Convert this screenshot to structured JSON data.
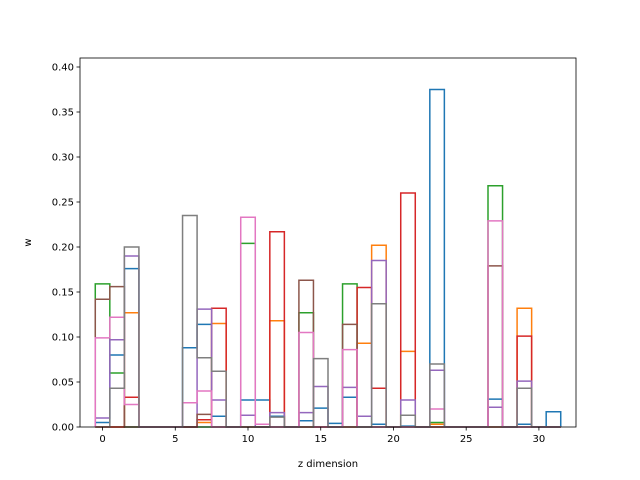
{
  "chart_data": {
    "type": "step-histogram",
    "xlabel": "z dimension",
    "ylabel": "w",
    "xlim": [
      -1.55,
      32.55
    ],
    "ylim": [
      0,
      0.41
    ],
    "x_ticks": [
      0,
      5,
      10,
      15,
      20,
      25,
      30
    ],
    "y_ticks": [
      0.0,
      0.05,
      0.1,
      0.15,
      0.2,
      0.25,
      0.3,
      0.35,
      0.4
    ],
    "y_tick_labels": [
      "0.00",
      "0.05",
      "0.10",
      "0.15",
      "0.20",
      "0.25",
      "0.30",
      "0.35",
      "0.40"
    ],
    "bins": [
      0,
      1,
      2,
      3,
      4,
      5,
      6,
      7,
      8,
      9,
      10,
      11,
      12,
      13,
      14,
      15,
      16,
      17,
      18,
      19,
      20,
      21,
      22,
      23,
      24,
      25,
      26,
      27,
      28,
      29,
      30,
      31
    ],
    "series": [
      {
        "color": "#1f77b4",
        "values": [
          0.005,
          0.08,
          0.176,
          0,
          0,
          0,
          0.088,
          0.114,
          0.012,
          0,
          0.03,
          0.03,
          0.012,
          0,
          0.007,
          0.021,
          0.004,
          0.033,
          0.012,
          0.003,
          0,
          0.001,
          0,
          0.375,
          0,
          0,
          0,
          0.031,
          0,
          0.003,
          0,
          0.017
        ]
      },
      {
        "color": "#ff7f0e",
        "values": [
          0,
          0,
          0.127,
          0,
          0,
          0,
          0,
          0.005,
          0.115,
          0,
          0,
          0,
          0.118,
          0,
          0,
          0,
          0,
          0,
          0.093,
          0.202,
          0,
          0.084,
          0,
          0.003,
          0,
          0,
          0,
          0,
          0,
          0.132,
          0,
          0
        ]
      },
      {
        "color": "#2ca02c",
        "values": [
          0.159,
          0.06,
          0,
          0,
          0,
          0,
          0,
          0,
          0,
          0,
          0.204,
          0,
          0,
          0,
          0.127,
          0,
          0,
          0.159,
          0,
          0,
          0,
          0,
          0,
          0.005,
          0,
          0,
          0,
          0.268,
          0,
          0,
          0,
          0
        ]
      },
      {
        "color": "#d62728",
        "values": [
          0,
          0,
          0.033,
          0,
          0,
          0,
          0,
          0.008,
          0.132,
          0,
          0,
          0,
          0.217,
          0,
          0,
          0,
          0,
          0,
          0.155,
          0.043,
          0,
          0.26,
          0,
          0,
          0,
          0,
          0,
          0,
          0,
          0.101,
          0,
          0
        ]
      },
      {
        "color": "#9467bd",
        "values": [
          0.01,
          0.097,
          0.19,
          0,
          0,
          0,
          0,
          0.131,
          0.03,
          0,
          0.013,
          0,
          0.016,
          0,
          0.016,
          0.045,
          0,
          0.044,
          0.012,
          0.185,
          0,
          0.03,
          0,
          0.063,
          0,
          0,
          0,
          0.022,
          0,
          0.051,
          0,
          0
        ]
      },
      {
        "color": "#8c564b",
        "values": [
          0.142,
          0.156,
          0,
          0,
          0,
          0,
          0,
          0.014,
          0,
          0,
          0,
          0,
          0,
          0,
          0.163,
          0,
          0,
          0.114,
          0,
          0,
          0,
          0,
          0,
          0,
          0,
          0,
          0,
          0.179,
          0,
          0,
          0,
          0
        ]
      },
      {
        "color": "#e377c2",
        "values": [
          0.099,
          0.122,
          0.025,
          0,
          0,
          0,
          0.027,
          0.04,
          0,
          0,
          0.233,
          0.003,
          0,
          0,
          0.105,
          0,
          0,
          0.086,
          0,
          0,
          0,
          0,
          0,
          0.02,
          0,
          0,
          0,
          0.229,
          0,
          0,
          0,
          0
        ]
      },
      {
        "color": "#7f7f7f",
        "values": [
          0,
          0.043,
          0.2,
          0,
          0,
          0,
          0.235,
          0.077,
          0.062,
          0,
          0,
          0,
          0.011,
          0,
          0,
          0.076,
          0,
          0,
          0,
          0.137,
          0,
          0.013,
          0,
          0.07,
          0,
          0,
          0,
          0,
          0,
          0.043,
          0,
          0
        ]
      }
    ]
  }
}
